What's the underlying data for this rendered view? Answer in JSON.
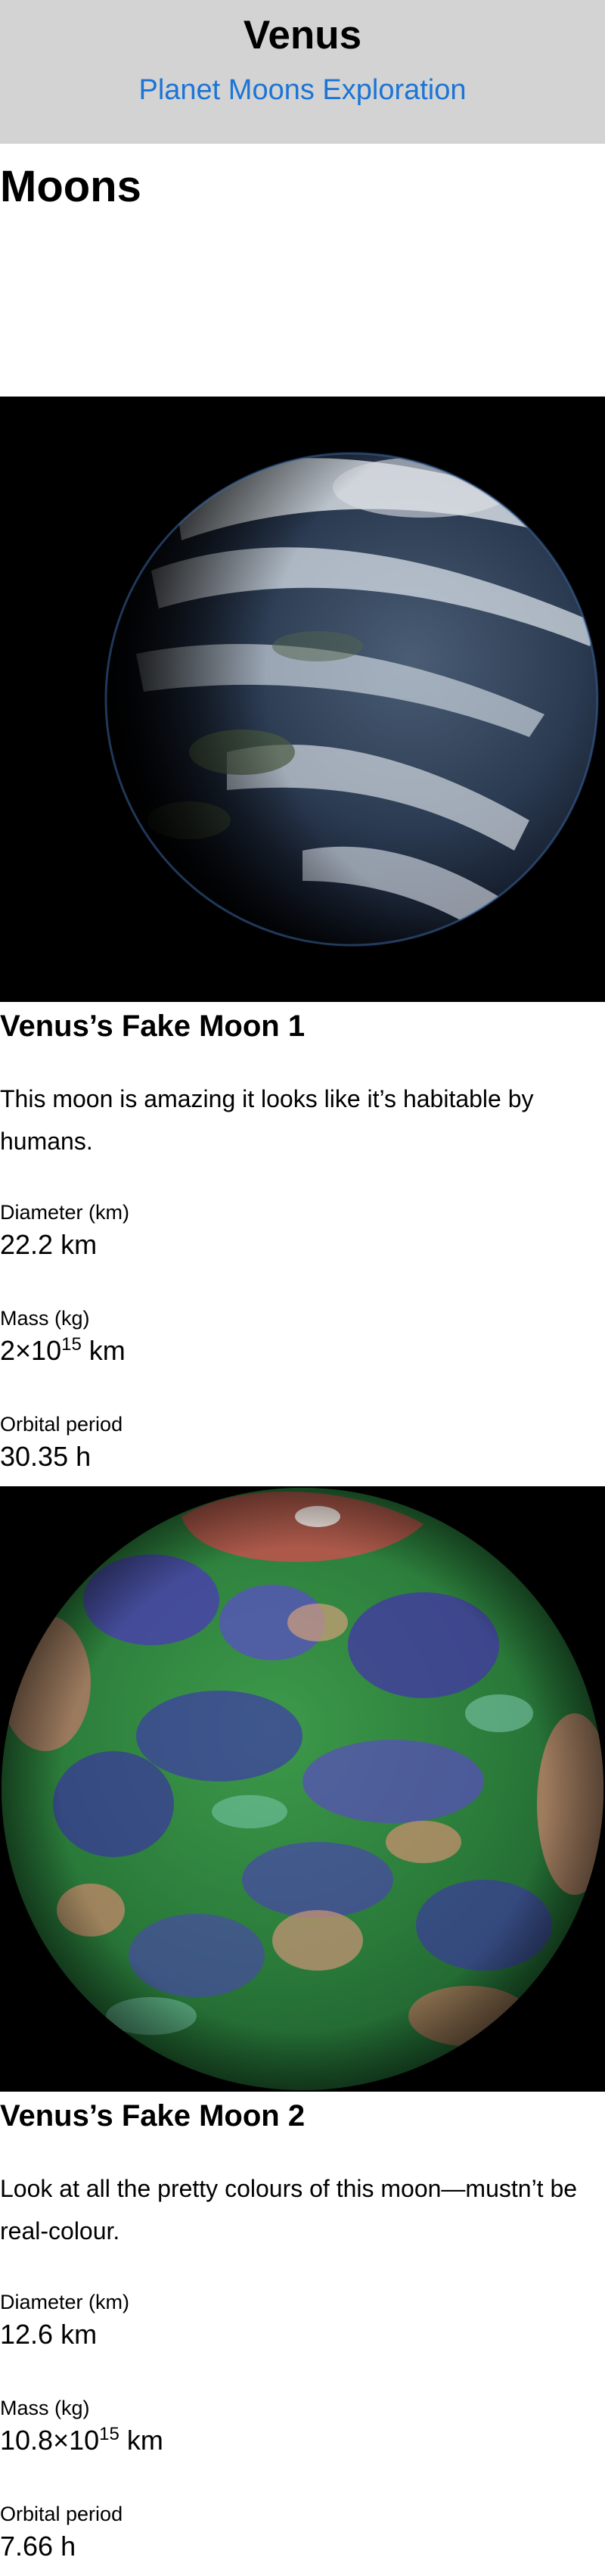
{
  "header": {
    "title": "Venus",
    "tagline": "Planet Moons Exploration"
  },
  "section": {
    "heading": "Moons"
  },
  "moons": [
    {
      "name": "Venus’s Fake Moon 1",
      "description": "This moon is amazing it looks like it’s habitable by humans.",
      "stats": [
        {
          "label": "Diameter (km)",
          "value": "22.2 km",
          "exponent": "",
          "unit": ""
        },
        {
          "label": "Mass (kg)",
          "value": "2×10",
          "exponent": "15",
          "unit": " km"
        },
        {
          "label": "Orbital period",
          "value": "30.35 h",
          "exponent": "",
          "unit": ""
        }
      ],
      "image": {
        "subject": "cloud-covered-planet-photo",
        "colors": [
          "#0b1220",
          "#2d3d55",
          "#d6dde6",
          "#46553c"
        ]
      }
    },
    {
      "name": "Venus’s Fake Moon 2",
      "description": "Look at all the pretty colours of this moon—mustn’t be real-colour.",
      "stats": [
        {
          "label": "Diameter (km)",
          "value": "12.6 km",
          "exponent": "",
          "unit": ""
        },
        {
          "label": "Mass (kg)",
          "value": "10.8×10",
          "exponent": "15",
          "unit": " km"
        },
        {
          "label": "Orbital period",
          "value": "7.66 h",
          "exponent": "",
          "unit": ""
        }
      ],
      "image": {
        "subject": "false-color-topography-globe",
        "colors": [
          "#2d8a3e",
          "#4a3fb0",
          "#d08a6e",
          "#c24a44"
        ]
      }
    }
  ],
  "colors": {
    "header_bg": "#d3d3d3",
    "tagline": "#1b74d6",
    "photo_bg": "#000000"
  }
}
